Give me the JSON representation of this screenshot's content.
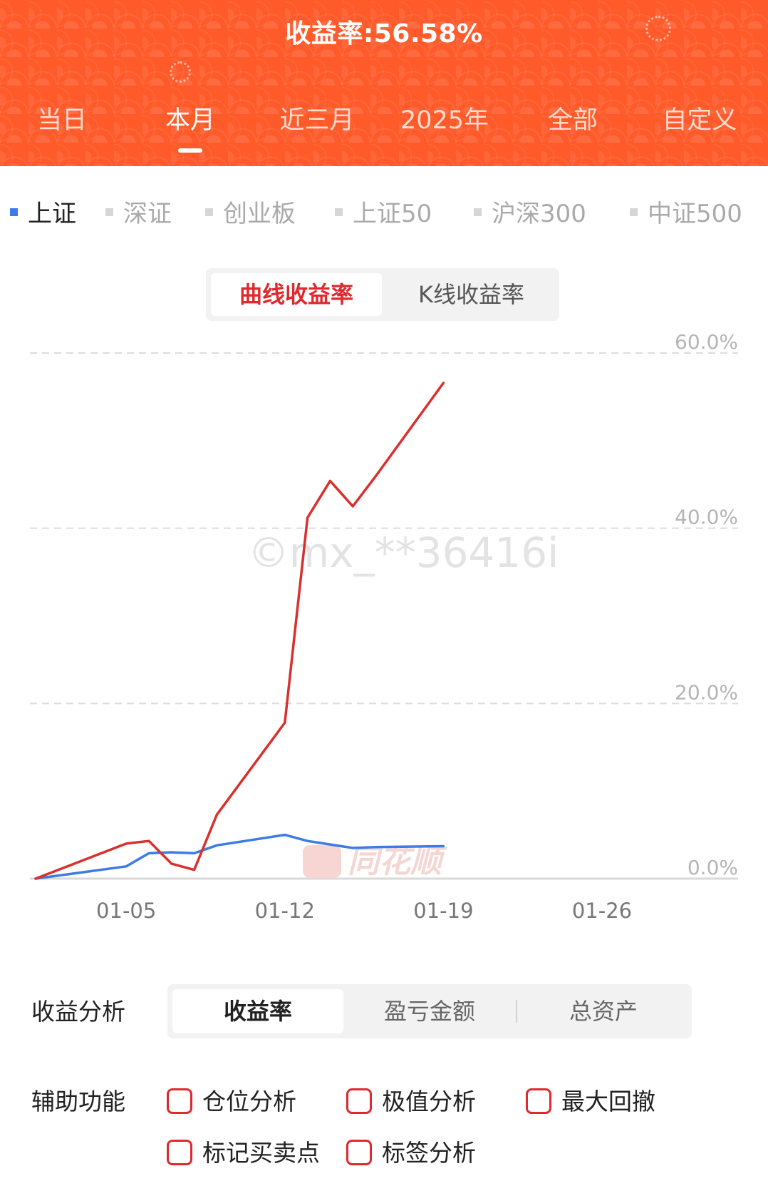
{
  "header": {
    "title": "收益率:56.58%",
    "bg_color": "#ff5a2a",
    "period_tabs": [
      {
        "label": "当日"
      },
      {
        "label": "本月"
      },
      {
        "label": "近三月"
      },
      {
        "label": "2025年"
      },
      {
        "label": "全部"
      },
      {
        "label": "自定义"
      }
    ],
    "active_tab": "本月"
  },
  "index_tabs": {
    "items": [
      {
        "label": "上证"
      },
      {
        "label": "深证"
      },
      {
        "label": "创业板"
      },
      {
        "label": "上证50"
      },
      {
        "label": "沪深300"
      },
      {
        "label": "中证500"
      }
    ],
    "active": "上证",
    "active_color": "#3d7be6"
  },
  "mode_toggle": {
    "active_label": "曲线收益率",
    "inactive_label": "K线收益率"
  },
  "chart_data": {
    "type": "line",
    "watermark": "©mx_**36416i",
    "brand_watermark": "同花顺",
    "x_ticks": [
      "01-05",
      "01-12",
      "01-19",
      "01-26"
    ],
    "y_ticks": [
      "0.0%",
      "20.0%",
      "40.0%",
      "60.0%"
    ],
    "ylim": [
      0,
      60
    ],
    "series": [
      {
        "color": "#d9302e",
        "x": [
          "01-01",
          "01-05",
          "01-06",
          "01-07",
          "01-08",
          "01-09",
          "01-12",
          "01-13",
          "01-14",
          "01-15",
          "01-16",
          "01-19"
        ],
        "values": [
          0.0,
          4.0,
          4.3,
          1.7,
          1.0,
          7.3,
          17.8,
          41.2,
          45.4,
          42.5,
          45.9,
          56.58
        ]
      },
      {
        "color": "#3d7be6",
        "x": [
          "01-01",
          "01-05",
          "01-06",
          "01-07",
          "01-08",
          "01-09",
          "01-12",
          "01-13",
          "01-14",
          "01-15",
          "01-16",
          "01-19"
        ],
        "values": [
          0.0,
          1.4,
          2.9,
          3.0,
          2.9,
          3.8,
          5.0,
          4.3,
          3.9,
          3.5,
          3.6,
          3.7
        ]
      }
    ]
  },
  "analysis": {
    "label": "收益分析",
    "segments": [
      {
        "label": "收益率"
      },
      {
        "label": "盈亏金额"
      },
      {
        "label": "总资产"
      }
    ],
    "active": "收益率"
  },
  "aux": {
    "label": "辅助功能",
    "checkboxes": [
      {
        "label": "仓位分析",
        "checked": false
      },
      {
        "label": "极值分析",
        "checked": false
      },
      {
        "label": "最大回撤",
        "checked": false
      },
      {
        "label": "标记买卖点",
        "checked": false
      },
      {
        "label": "标签分析",
        "checked": false
      }
    ],
    "checkbox_color": "#e0282e"
  }
}
